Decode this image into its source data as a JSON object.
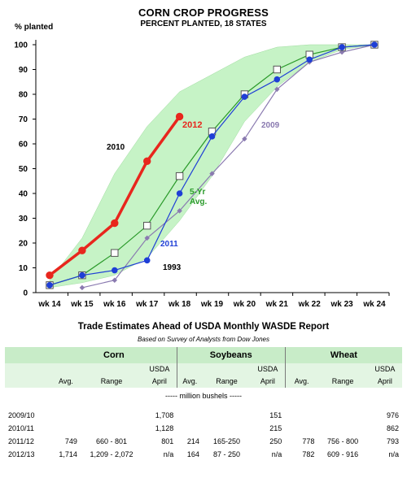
{
  "chart_data": {
    "type": "line",
    "title": "CORN CROP PROGRESS",
    "subtitle": "PERCENT PLANTED, 18 STATES",
    "ylabel": "% planted",
    "ylim": [
      0,
      100
    ],
    "yticks": [
      0,
      10,
      20,
      30,
      40,
      50,
      60,
      70,
      80,
      90,
      100
    ],
    "categories": [
      "wk 14",
      "wk 15",
      "wk 16",
      "wk 17",
      "wk 18",
      "wk 19",
      "wk 20",
      "wk 21",
      "wk 22",
      "wk 23",
      "wk 24"
    ],
    "band_label": "2010",
    "band": {
      "lower": [
        2,
        4,
        7,
        14,
        29,
        47,
        69,
        83,
        93,
        98,
        100
      ],
      "upper": [
        5,
        22,
        48,
        67,
        81,
        88,
        95,
        99,
        100,
        100,
        100
      ]
    },
    "series": [
      {
        "name": "2012",
        "color": "#e8261d",
        "values": [
          7,
          17,
          28,
          53,
          71,
          null,
          null,
          null,
          null,
          null,
          null
        ]
      },
      {
        "name": "5-Yr Avg.",
        "color": "#2a9a2a",
        "values": [
          3,
          7,
          16,
          27,
          47,
          65,
          80,
          90,
          96,
          99,
          100
        ]
      },
      {
        "name": "2011",
        "color": "#1f3fd6",
        "values": [
          3,
          7,
          9,
          13,
          40,
          63,
          79,
          86,
          94,
          99,
          100
        ]
      },
      {
        "name": "2009",
        "color": "#8a7ab0",
        "values": [
          null,
          2,
          5,
          22,
          33,
          48,
          62,
          82,
          93,
          97,
          100
        ]
      }
    ],
    "annotations": [
      "1993"
    ]
  },
  "trade": {
    "title": "Trade Estimates Ahead of USDA Monthly WASDE Report",
    "subtitle": "Based on Survey of Analysts from Dow Jones",
    "crops": [
      "Corn",
      "Soybeans",
      "Wheat"
    ],
    "col_usda": "USDA",
    "col_avg": "Avg.",
    "col_range": "Range",
    "col_april": "April",
    "units": "----- million bushels -----",
    "rows": [
      {
        "year": "2009/10",
        "corn": [
          "",
          "",
          "1,708"
        ],
        "soy": [
          "",
          "",
          "151"
        ],
        "wheat": [
          "",
          "",
          "976"
        ]
      },
      {
        "year": "2010/11",
        "corn": [
          "",
          "",
          "1,128"
        ],
        "soy": [
          "",
          "",
          "215"
        ],
        "wheat": [
          "",
          "",
          "862"
        ]
      },
      {
        "year": "2011/12",
        "corn": [
          "749",
          "660 - 801",
          "801"
        ],
        "soy": [
          "214",
          "165-250",
          "250"
        ],
        "wheat": [
          "778",
          "756 - 800",
          "793"
        ]
      },
      {
        "year": "2012/13",
        "corn": [
          "1,714",
          "1,209 - 2,072",
          "n/a"
        ],
        "soy": [
          "164",
          "87 - 250",
          "n/a"
        ],
        "wheat": [
          "782",
          "609 - 916",
          "n/a"
        ]
      }
    ]
  }
}
